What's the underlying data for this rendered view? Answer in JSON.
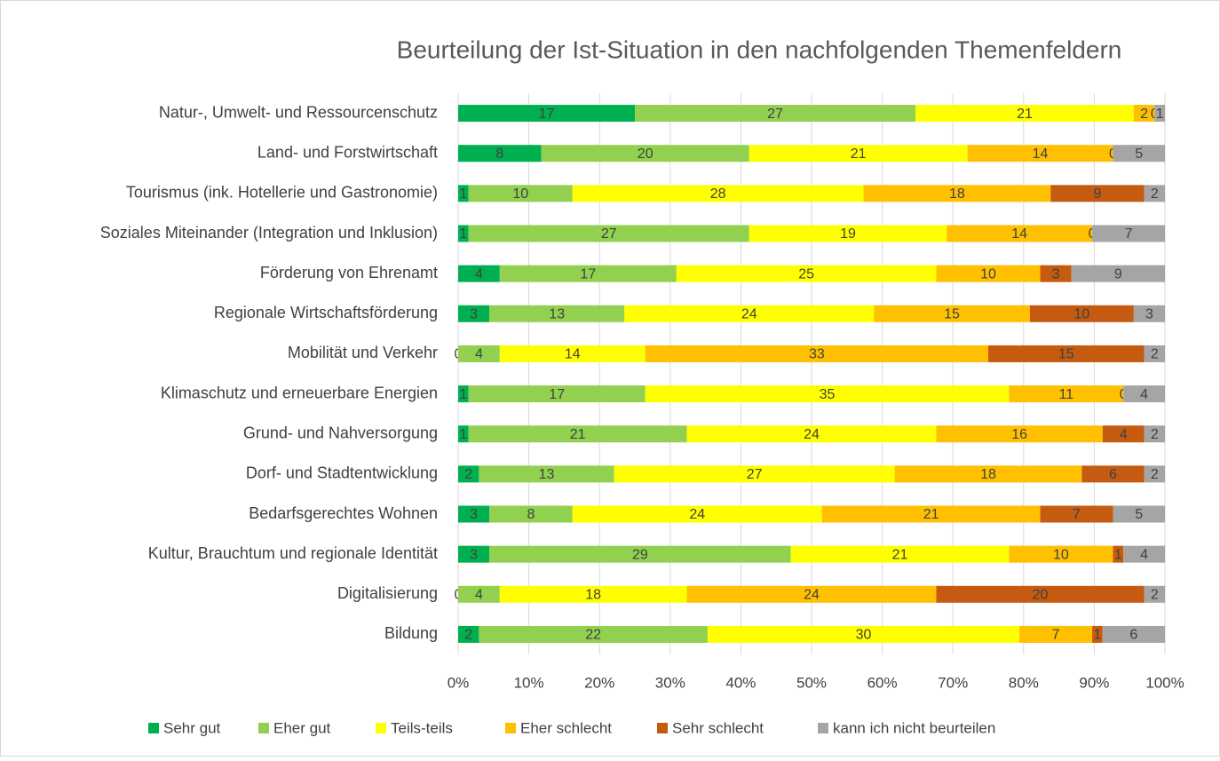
{
  "chart_data": {
    "type": "stacked_percent_bar_horizontal",
    "title": "Beurteilung der Ist-Situation in den nachfolgenden Themenfeldern",
    "categories": [
      "Natur-, Umwelt- und Ressourcenschutz",
      "Land- und Forstwirtschaft",
      "Tourismus (ink. Hotellerie und Gastronomie)",
      "Soziales Miteinander (Integration und Inklusion)",
      "Förderung von Ehrenamt",
      "Regionale Wirtschaftsförderung",
      "Mobilität und Verkehr",
      "Klimaschutz und erneuerbare Energien",
      "Grund- und Nahversorgung",
      "Dorf- und Stadtentwicklung",
      "Bedarfsgerechtes Wohnen",
      "Kultur, Brauchtum und regionale Identität",
      "Digitalisierung",
      "Bildung"
    ],
    "series": [
      {
        "name": "Sehr gut",
        "color": "#00b050",
        "values": [
          17,
          8,
          1,
          1,
          4,
          3,
          0,
          1,
          1,
          2,
          3,
          3,
          0,
          2
        ]
      },
      {
        "name": "Eher gut",
        "color": "#92d050",
        "values": [
          27,
          20,
          10,
          27,
          17,
          13,
          4,
          17,
          21,
          13,
          8,
          29,
          4,
          22
        ]
      },
      {
        "name": "Teils-teils",
        "color": "#ffff00",
        "values": [
          21,
          21,
          28,
          19,
          25,
          24,
          14,
          35,
          24,
          27,
          24,
          21,
          18,
          30
        ]
      },
      {
        "name": "Eher schlecht",
        "color": "#ffc000",
        "values": [
          2,
          14,
          18,
          14,
          10,
          15,
          33,
          11,
          16,
          18,
          21,
          10,
          24,
          7
        ]
      },
      {
        "name": "Sehr schlecht",
        "color": "#c55a11",
        "values": [
          0,
          0,
          9,
          0,
          3,
          10,
          15,
          0,
          4,
          6,
          7,
          1,
          20,
          1
        ]
      },
      {
        "name": "kann ich nicht beurteilen",
        "color": "#a5a5a5",
        "values": [
          1,
          5,
          2,
          7,
          9,
          3,
          2,
          4,
          2,
          2,
          5,
          4,
          2,
          6
        ]
      }
    ],
    "xlim": [
      0,
      100
    ],
    "xticks": [
      {
        "value": 0,
        "label": "0%"
      },
      {
        "value": 10,
        "label": "10%"
      },
      {
        "value": 20,
        "label": "20%"
      },
      {
        "value": 30,
        "label": "30%"
      },
      {
        "value": 40,
        "label": "40%"
      },
      {
        "value": 50,
        "label": "50%"
      },
      {
        "value": 60,
        "label": "60%"
      },
      {
        "value": 70,
        "label": "70%"
      },
      {
        "value": 80,
        "label": "80%"
      },
      {
        "value": 90,
        "label": "90%"
      },
      {
        "value": 100,
        "label": "100%"
      }
    ],
    "grid": true,
    "legend": "bottom"
  }
}
